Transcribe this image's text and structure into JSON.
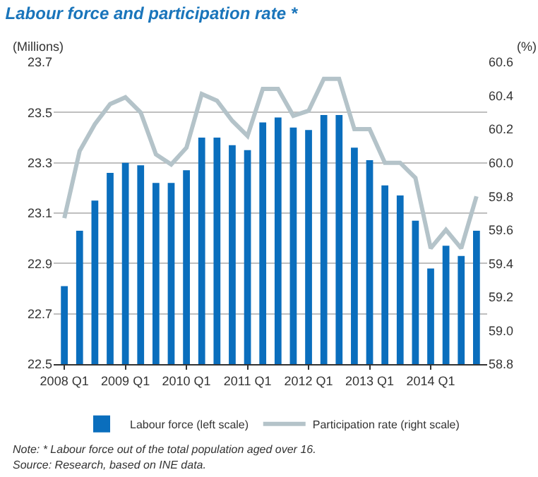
{
  "chart_data": {
    "type": "bar",
    "title": "Labour force and participation rate *",
    "ylabel": "(Millions)",
    "y2label": "(%)",
    "categories": [
      "2008 Q1",
      null,
      null,
      null,
      "2009 Q1",
      null,
      null,
      null,
      "2010 Q1",
      null,
      null,
      null,
      "2011 Q1",
      null,
      null,
      null,
      "2012 Q1",
      null,
      null,
      null,
      "2013 Q1",
      null,
      null,
      null,
      "2014 Q1",
      null,
      null,
      null
    ],
    "series": [
      {
        "name": "Labour force (left scale)",
        "color": "#0a6ebd",
        "values": [
          22.81,
          23.03,
          23.15,
          23.26,
          23.3,
          23.29,
          23.22,
          23.22,
          23.27,
          23.4,
          23.4,
          23.37,
          23.35,
          23.46,
          23.48,
          23.44,
          23.43,
          23.49,
          23.49,
          23.36,
          23.31,
          23.21,
          23.17,
          23.07,
          22.88,
          22.97,
          22.93,
          23.03
        ]
      },
      {
        "name": "Participation rate (right scale)",
        "type": "line",
        "axis": "y2",
        "color": "#b4c3c9",
        "values": [
          59.67,
          60.07,
          60.23,
          60.35,
          60.39,
          60.3,
          60.05,
          59.99,
          60.09,
          60.41,
          60.37,
          60.25,
          60.16,
          60.44,
          60.44,
          60.28,
          60.31,
          60.5,
          60.5,
          60.2,
          60.2,
          60.0,
          60.0,
          59.91,
          59.49,
          59.6,
          59.49,
          59.8
        ]
      }
    ],
    "ylim": [
      22.5,
      23.7
    ],
    "yticks": [
      22.5,
      22.7,
      22.9,
      23.1,
      23.3,
      23.5,
      23.7
    ],
    "y2lim": [
      58.8,
      60.6
    ],
    "y2ticks": [
      {
        "value": 58.8,
        "label": "58.8"
      },
      {
        "value": 59.0,
        "label": "59.0"
      },
      {
        "value": 59.2,
        "label": "59.2"
      },
      {
        "value": 59.4,
        "label": "59.4"
      },
      {
        "value": 59.6,
        "label": "59.6"
      },
      {
        "value": 59.8,
        "label": "59.8"
      },
      {
        "value": 60.0,
        "label": "60.0"
      },
      {
        "value": 60.2,
        "label": "60.2"
      },
      {
        "value": 60.4,
        "label": "60.4"
      },
      {
        "value": 60.6,
        "label": "60.6"
      }
    ],
    "grid": "y",
    "legend": "bottom",
    "marker": "none",
    "line_style": "solid",
    "annotations": [
      "Note: * Labour force out of the total population aged over 16.",
      "Source: Research, based on INE data."
    ]
  }
}
